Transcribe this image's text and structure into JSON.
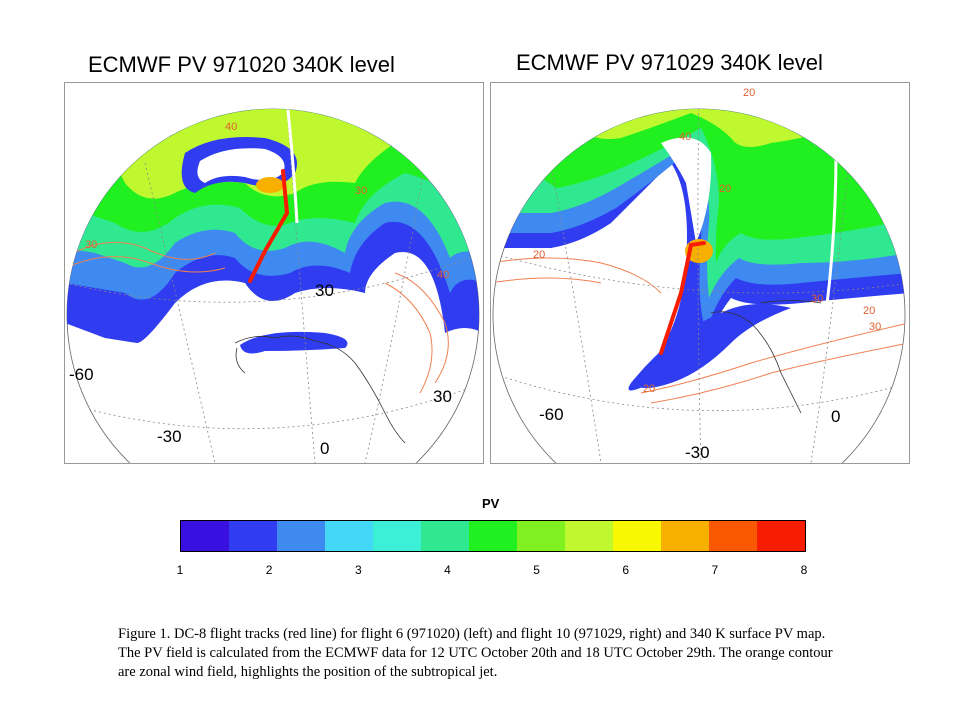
{
  "maps": [
    {
      "title": "ECMWF PV 971020 340K level",
      "labels": [
        "30",
        "-60",
        "30",
        "-30",
        "0"
      ],
      "contour_labels": [
        "40",
        "30",
        "40",
        "30"
      ]
    },
    {
      "title": "ECMWF PV 971029 340K level",
      "labels": [
        "-60",
        "0",
        "-30"
      ],
      "contour_labels": [
        "20",
        "40",
        "20",
        "20",
        "30",
        "20",
        "30",
        "20"
      ]
    }
  ],
  "colorbar": {
    "title": "PV",
    "ticks": [
      "1",
      "2",
      "3",
      "4",
      "5",
      "6",
      "7",
      "8"
    ],
    "colors": [
      "#3a10e0",
      "#2f3cf0",
      "#3f8af0",
      "#44d8f8",
      "#3cf0d8",
      "#30e890",
      "#20f020",
      "#80f020",
      "#c0f830",
      "#f8f800",
      "#f8b000",
      "#f85800",
      "#f81c00"
    ]
  },
  "caption": "Figure 1. DC-8 flight tracks (red line) for flight 6 (971020) (left) and flight 10 (971029, right) and 340 K surface PV map.  The PV field is calculated from the ECMWF data for 12 UTC October 20th and 18 UTC October 29th. The orange contour are zonal wind field, highlights the position of the subtropical jet."
}
